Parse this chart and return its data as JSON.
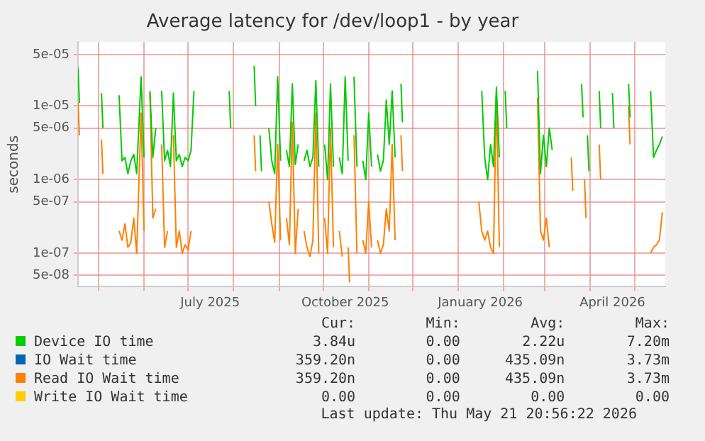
{
  "chart_data": {
    "type": "line",
    "title": "Average latency for /dev/loop1 - by year",
    "ylabel": "seconds",
    "log": "y",
    "grid": true,
    "legend": "bottom",
    "marker": "none",
    "line_style": "solid",
    "xlim": [
      "2025-04-17",
      "2026-05-22"
    ],
    "ylim": [
      3.5e-08,
      7.4e-05
    ],
    "yticks": [
      {
        "value": 5e-08,
        "label": "5e-08"
      },
      {
        "value": 1e-07,
        "label": "1e-07"
      },
      {
        "value": 5e-07,
        "label": "5e-07"
      },
      {
        "value": 1e-06,
        "label": "1e-06"
      },
      {
        "value": 5e-06,
        "label": "5e-06"
      },
      {
        "value": 1e-05,
        "label": "1e-05"
      },
      {
        "value": 5e-05,
        "label": "5e-05"
      }
    ],
    "xticks": [
      {
        "value": "2025-05-01",
        "label": null
      },
      {
        "value": "2025-06-01",
        "label": null
      },
      {
        "value": "2025-07-01",
        "label": null
      },
      {
        "value": "2025-07-16",
        "label": "July 2025"
      },
      {
        "value": "2025-08-01",
        "label": null
      },
      {
        "value": "2025-09-01",
        "label": null
      },
      {
        "value": "2025-10-01",
        "label": null
      },
      {
        "value": "2025-10-16",
        "label": "October 2025"
      },
      {
        "value": "2025-11-01",
        "label": null
      },
      {
        "value": "2025-12-01",
        "label": null
      },
      {
        "value": "2026-01-01",
        "label": null
      },
      {
        "value": "2026-01-16",
        "label": "January 2026"
      },
      {
        "value": "2026-02-01",
        "label": null
      },
      {
        "value": "2026-03-01",
        "label": null
      },
      {
        "value": "2026-04-01",
        "label": null
      },
      {
        "value": "2026-04-16",
        "label": "April 2026"
      },
      {
        "value": "2026-05-01",
        "label": null
      }
    ],
    "x": [
      "2025-04-17",
      "2025-04-18",
      "2025-04-19",
      "2025-05-02",
      "2025-05-03",
      "2025-05-04",
      "2025-05-05",
      "2025-05-13",
      "2025-05-15",
      "2025-05-17",
      "2025-05-19",
      "2025-05-21",
      "2025-05-23",
      "2025-05-25",
      "2025-05-27",
      "2025-05-30",
      "2025-06-01",
      "2025-06-03",
      "2025-06-05",
      "2025-06-07",
      "2025-06-09",
      "2025-06-11",
      "2025-06-13",
      "2025-06-15",
      "2025-06-17",
      "2025-06-19",
      "2025-06-21",
      "2025-06-23",
      "2025-06-25",
      "2025-06-27",
      "2025-06-29",
      "2025-07-01",
      "2025-07-03",
      "2025-07-05",
      "2025-07-07",
      "2025-07-29",
      "2025-07-30",
      "2025-07-31",
      "2025-08-15",
      "2025-08-16",
      "2025-08-17",
      "2025-08-19",
      "2025-08-20",
      "2025-08-21",
      "2025-08-25",
      "2025-08-27",
      "2025-08-29",
      "2025-08-31",
      "2025-09-02",
      "2025-09-04",
      "2025-09-06",
      "2025-09-08",
      "2025-09-10",
      "2025-09-12",
      "2025-09-14",
      "2025-09-16",
      "2025-09-18",
      "2025-09-20",
      "2025-09-22",
      "2025-09-24",
      "2025-09-26",
      "2025-09-28",
      "2025-09-30",
      "2025-10-02",
      "2025-10-04",
      "2025-10-06",
      "2025-10-08",
      "2025-10-10",
      "2025-10-12",
      "2025-10-14",
      "2025-10-16",
      "2025-10-18",
      "2025-10-19",
      "2025-10-20",
      "2025-10-22",
      "2025-10-24",
      "2025-10-26",
      "2025-10-28",
      "2025-10-30",
      "2025-11-01",
      "2025-11-03",
      "2025-11-05",
      "2025-11-07",
      "2025-11-09",
      "2025-11-11",
      "2025-11-13",
      "2025-11-15",
      "2025-11-17",
      "2025-11-19",
      "2025-11-21",
      "2025-11-23",
      "2025-11-24",
      "2025-11-25",
      "2025-12-13",
      "2026-01-14",
      "2026-01-15",
      "2026-01-17",
      "2026-01-19",
      "2026-01-21",
      "2026-01-23",
      "2026-01-25",
      "2026-01-27",
      "2026-01-29",
      "2026-01-31",
      "2026-02-02",
      "2026-02-03",
      "2026-02-04",
      "2026-02-23",
      "2026-02-24",
      "2026-02-26",
      "2026-02-28",
      "2026-03-02",
      "2026-03-04",
      "2026-03-06",
      "2026-03-08",
      "2026-03-18",
      "2026-03-19",
      "2026-03-20",
      "2026-03-21",
      "2026-03-26",
      "2026-03-27",
      "2026-03-28",
      "2026-03-29",
      "2026-03-30",
      "2026-03-31",
      "2026-04-01",
      "2026-04-07",
      "2026-04-08",
      "2026-04-09",
      "2026-04-16",
      "2026-04-17",
      "2026-04-18",
      "2026-04-27",
      "2026-04-28",
      "2026-04-29",
      "2026-05-10",
      "2026-05-12",
      "2026-05-14",
      "2026-05-16",
      "2026-05-18",
      "2026-05-20"
    ],
    "series": [
      {
        "name": "Device IO time",
        "color": "#00cc00",
        "values": [
          3.3e-05,
          1.1e-05,
          null,
          null,
          1.5e-05,
          5e-06,
          null,
          null,
          1.4e-05,
          1.8e-06,
          2e-06,
          1.2e-06,
          1.8e-06,
          2.2e-06,
          1.2e-06,
          2.5e-05,
          2e-06,
          null,
          1.6e-05,
          2e-06,
          5e-06,
          null,
          1.6e-05,
          1.8e-06,
          2.5e-06,
          1.5e-06,
          1.5e-05,
          1.8e-06,
          2.2e-06,
          1.5e-06,
          2e-06,
          1.8e-06,
          2.5e-06,
          1.6e-05,
          null,
          1.6e-05,
          5e-06,
          null,
          3.5e-05,
          1e-05,
          null,
          4e-06,
          1.3e-06,
          null,
          5e-06,
          1.8e-06,
          1.2e-06,
          2.5e-05,
          1.8e-06,
          null,
          2.5e-06,
          1.5e-06,
          2e-05,
          1.6e-06,
          3e-06,
          null,
          1.8e-06,
          2.5e-06,
          1.5e-06,
          2e-06,
          2.2e-05,
          1.5e-06,
          null,
          3e-06,
          1e-06,
          2e-05,
          1.5e-06,
          null,
          2e-06,
          1.2e-06,
          2.5e-05,
          1.8e-06,
          null,
          null,
          2.5e-05,
          1.5e-06,
          null,
          1.8e-06,
          1e-06,
          8e-06,
          1.5e-06,
          null,
          2.2e-06,
          1.3e-06,
          1.8e-06,
          1.2e-05,
          3e-06,
          1.6e-05,
          2e-06,
          null,
          2e-05,
          6e-06,
          null,
          null,
          null,
          null,
          1.6e-05,
          2e-06,
          1e-06,
          3e-06,
          1.5e-06,
          1.8e-05,
          2e-06,
          null,
          1.6e-05,
          5e-06,
          null,
          null,
          3e-05,
          1.2e-06,
          4e-06,
          1.5e-06,
          5e-06,
          2.5e-06,
          null,
          null,
          null,
          null,
          null,
          2e-05,
          7e-06,
          null,
          null,
          4e-06,
          1.3e-06,
          null,
          1.6e-05,
          5e-06,
          null,
          1.5e-05,
          5e-06,
          null,
          2e-05,
          7e-06,
          null,
          null,
          1.6e-05,
          2e-06,
          2.5e-06,
          3e-06,
          3.84e-06
        ]
      },
      {
        "name": "IO Wait time",
        "color": "#0066b3",
        "values": [
          null,
          null,
          null,
          null,
          null,
          null,
          null,
          null,
          null,
          null,
          null,
          null,
          null,
          null,
          null,
          null,
          null,
          null,
          null,
          null,
          null,
          null,
          null,
          null,
          null,
          null,
          null,
          null,
          null,
          null,
          null,
          null,
          null,
          null,
          null,
          null,
          null,
          null,
          null,
          null,
          null,
          null,
          null,
          null,
          null,
          null,
          null,
          null,
          null,
          null,
          null,
          null,
          null,
          null,
          null,
          null,
          null,
          null,
          null,
          null,
          null,
          null,
          null,
          null,
          null,
          null,
          null,
          null,
          null,
          null,
          null,
          null,
          null,
          null,
          null,
          null,
          null,
          null,
          null,
          null,
          null,
          null,
          null,
          null,
          null,
          null,
          null,
          null,
          null,
          null,
          null,
          null,
          null,
          null,
          null,
          null,
          null,
          null,
          null,
          null,
          null,
          null,
          null,
          null,
          null,
          null,
          null,
          null,
          null,
          null,
          null,
          null,
          null,
          null,
          null,
          null,
          null,
          null,
          null,
          null,
          null,
          null,
          null,
          null,
          null,
          null,
          null,
          null,
          null,
          null,
          null,
          null,
          null,
          null,
          null,
          null,
          null,
          null,
          null,
          null,
          null
        ]
      },
      {
        "name": "Read IO Wait time",
        "color": "#ff8000",
        "values": [
          1.1e-05,
          4e-06,
          null,
          null,
          3.5e-06,
          1.2e-06,
          null,
          null,
          2e-07,
          1.5e-07,
          2.5e-07,
          1.2e-07,
          1.4e-07,
          3e-07,
          1e-07,
          8e-06,
          2e-07,
          null,
          1.5e-05,
          3e-07,
          4e-07,
          null,
          3e-06,
          1.2e-07,
          2e-07,
          null,
          4e-06,
          1.2e-07,
          2e-07,
          1e-07,
          1.3e-07,
          1.1e-07,
          2e-07,
          null,
          null,
          null,
          null,
          null,
          4e-06,
          1.3e-06,
          null,
          null,
          null,
          null,
          5e-07,
          2.5e-07,
          1.4e-07,
          3e-06,
          1.5e-07,
          null,
          3e-07,
          1.3e-07,
          6e-06,
          1e-07,
          4e-07,
          null,
          2e-07,
          1.2e-07,
          9e-08,
          1.5e-07,
          8e-06,
          1e-07,
          null,
          3e-07,
          1e-07,
          5e-06,
          1.2e-07,
          null,
          2e-07,
          9e-08,
          null,
          1.2e-07,
          4e-08,
          null,
          4e-06,
          1e-07,
          null,
          1.5e-07,
          1e-07,
          5e-07,
          1.2e-07,
          null,
          1.5e-07,
          1e-07,
          1.3e-07,
          4e-07,
          2e-07,
          3e-06,
          1.5e-07,
          null,
          4e-06,
          1.3e-06,
          null,
          null,
          null,
          5e-07,
          2e-07,
          1.5e-07,
          2e-07,
          1.2e-07,
          1e-07,
          1.5e-05,
          1.2e-07,
          null,
          null,
          null,
          null,
          null,
          1.3e-05,
          2e-07,
          1.5e-07,
          3e-07,
          1.2e-07,
          null,
          null,
          null,
          2e-06,
          7e-07,
          null,
          null,
          null,
          1e-06,
          3e-07,
          null,
          null,
          null,
          3e-06,
          1e-06,
          null,
          null,
          null,
          null,
          1e-05,
          3e-06,
          null,
          null,
          1e-07,
          1.2e-07,
          1.3e-07,
          1.5e-07,
          3.592e-07
        ]
      },
      {
        "name": "Write IO Wait time",
        "color": "#ffcc00",
        "values": [
          null,
          null,
          null,
          null,
          null,
          null,
          null,
          null,
          null,
          null,
          null,
          null,
          null,
          null,
          null,
          null,
          null,
          null,
          null,
          null,
          null,
          null,
          null,
          null,
          null,
          null,
          null,
          null,
          null,
          null,
          null,
          null,
          null,
          null,
          null,
          null,
          null,
          null,
          null,
          null,
          null,
          null,
          null,
          null,
          null,
          null,
          null,
          null,
          null,
          null,
          null,
          null,
          null,
          null,
          null,
          null,
          null,
          null,
          null,
          null,
          null,
          null,
          null,
          null,
          null,
          null,
          null,
          null,
          null,
          null,
          null,
          null,
          null,
          null,
          null,
          null,
          null,
          null,
          null,
          null,
          null,
          null,
          null,
          null,
          null,
          null,
          null,
          null,
          null,
          null,
          null,
          null,
          null,
          null,
          null,
          null,
          null,
          null,
          null,
          null,
          null,
          null,
          null,
          null,
          null,
          null,
          null,
          null,
          null,
          null,
          null,
          null,
          null,
          null,
          null,
          null,
          null,
          null,
          null,
          null,
          null,
          null,
          null,
          null,
          null,
          null,
          null,
          null,
          null,
          null,
          null,
          null,
          null,
          null,
          null,
          null,
          null,
          null,
          null,
          null,
          null
        ]
      }
    ],
    "annotations": [
      "Cur:",
      "Min:",
      "Avg:",
      "Max:",
      "3.84u",
      "0.00",
      "2.22u",
      "7.20m",
      "359.20n",
      "0.00",
      "435.09n",
      "3.73m",
      "359.20n",
      "0.00",
      "435.09n",
      "3.73m",
      "0.00",
      "0.00",
      "0.00",
      "0.00",
      "Last update: Thu May 21 20:56:22 2026"
    ]
  }
}
